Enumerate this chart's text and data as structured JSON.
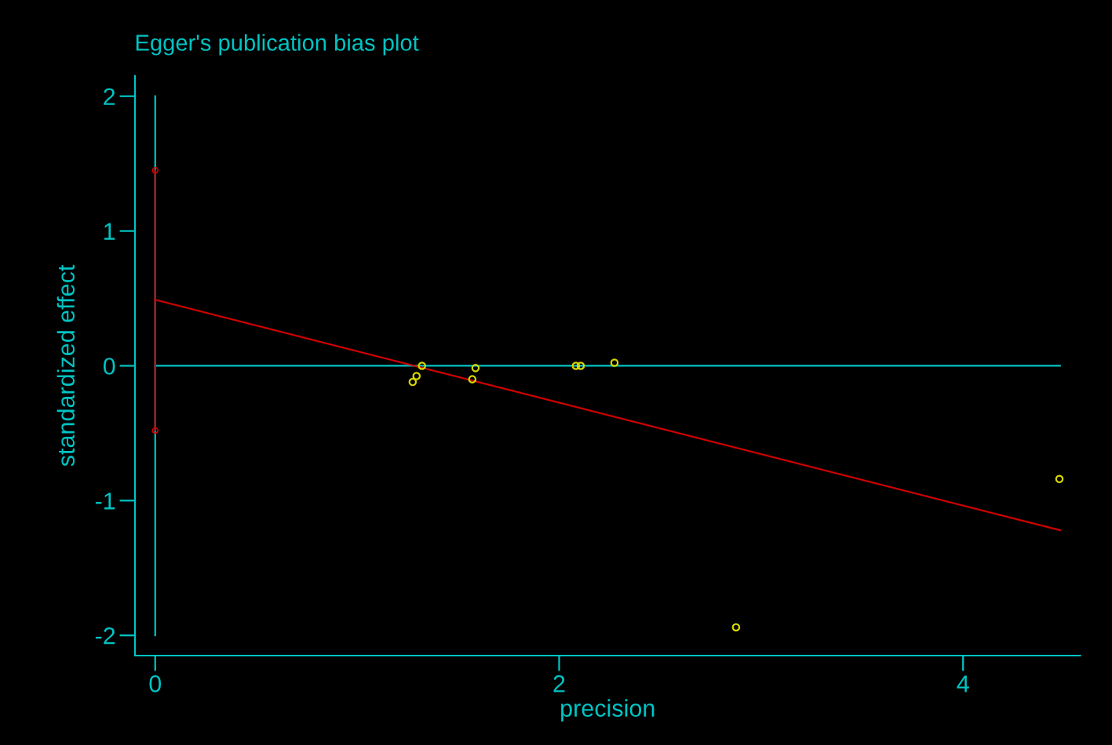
{
  "chart_data": {
    "type": "scatter",
    "title": "Egger's publication bias plot",
    "xlabel": "precision",
    "ylabel": "standardized effect",
    "xlim": [
      -0.1,
      4.58
    ],
    "ylim": [
      -2.15,
      2.15
    ],
    "xticks": [
      0,
      2,
      4
    ],
    "yticks": [
      -2,
      -1,
      0,
      1,
      2
    ],
    "grid": false,
    "legend": false,
    "series": [
      {
        "type": "line",
        "color": "#00c4c4",
        "x": [
          0,
          0
        ],
        "values": [
          2,
          -2
        ],
        "marker": "none"
      },
      {
        "type": "line",
        "color": "#00c4c4",
        "x": [
          0,
          4.48
        ],
        "values": [
          0,
          0
        ],
        "marker": "none"
      },
      {
        "type": "line",
        "color": "#d00000",
        "x": [
          0,
          0
        ],
        "values": [
          1.45,
          -0.48
        ],
        "marker": "circle"
      },
      {
        "type": "line",
        "color": "#d00000",
        "x": [
          0,
          4.48
        ],
        "values": [
          0.49,
          -1.22
        ],
        "marker": "none"
      },
      {
        "color": "#d8d800",
        "x": [
          1.275,
          1.294,
          1.321,
          1.57,
          1.586,
          2.083,
          2.107,
          2.274,
          2.876,
          4.477
        ],
        "values": [
          -0.12,
          -0.076,
          0.0,
          -0.1,
          -0.017,
          0.0,
          0.0,
          0.023,
          -1.94,
          -0.84
        ],
        "marker": "circle"
      }
    ]
  }
}
